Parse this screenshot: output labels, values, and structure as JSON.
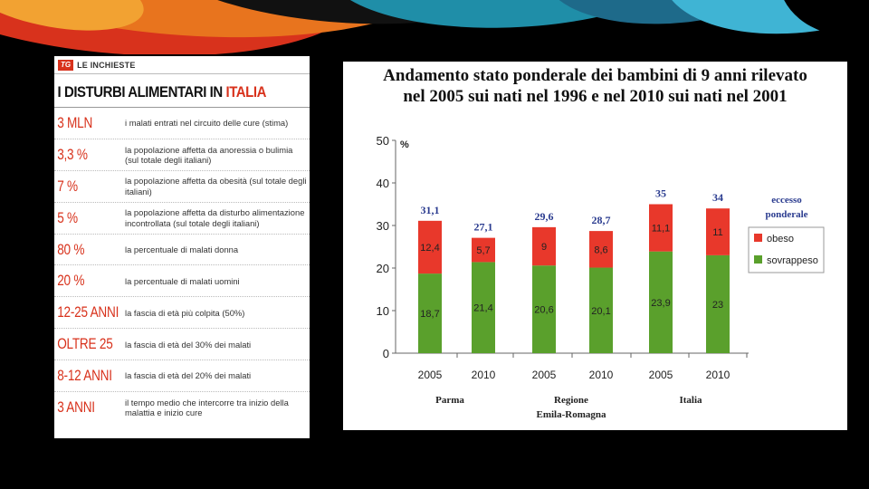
{
  "infographic": {
    "logo": "TG",
    "section": "LE INCHIESTE",
    "title_prefix": "I DISTURBI ALIMENTARI IN",
    "title_highlight": "ITALIA",
    "rows": [
      {
        "value": "3 MLN",
        "desc": "i malati entrati nel circuito delle cure (stima)"
      },
      {
        "value": "3,3 %",
        "desc": "la popolazione affetta da anoressia o bulimia (sul totale degli italiani)"
      },
      {
        "value": "7 %",
        "desc": "la popolazione affetta da obesità (sul totale degli italiani)"
      },
      {
        "value": "5 %",
        "desc": "la popolazione affetta da disturbo alimentazione incontrollata (sul totale degli italiani)"
      },
      {
        "value": "80 %",
        "desc": "la percentuale di malati donna"
      },
      {
        "value": "20 %",
        "desc": "la percentuale di malati uomini"
      },
      {
        "value": "12-25 ANNI",
        "desc": "la fascia di età più colpita (50%)"
      },
      {
        "value": "OLTRE 25",
        "desc": "la fascia di età del 30% dei malati"
      },
      {
        "value": "8-12 ANNI",
        "desc": "la fascia di età del 20% dei malati"
      },
      {
        "value": "3 ANNI",
        "desc": "il tempo medio che intercorre tra inizio della malattia e inizio cure"
      }
    ]
  },
  "chart_data": {
    "type": "bar",
    "stacked": true,
    "title_line1": "Andamento stato ponderale dei bambini di 9 anni rilevato",
    "title_line2": "nel 2005 sui nati nel 1996 e nel 2010 sui nati nel 2001",
    "ylabel": "%",
    "ylim": [
      0,
      50
    ],
    "yticks": [
      0,
      10,
      20,
      30,
      40,
      50
    ],
    "categories": [
      "2005",
      "2010",
      "2005",
      "2010",
      "2005",
      "2010"
    ],
    "groups": [
      {
        "label": "Parma",
        "indices": [
          0,
          1
        ]
      },
      {
        "label": "Regione\nEmila-Romagna",
        "indices": [
          2,
          3
        ]
      },
      {
        "label": "Italia",
        "indices": [
          4,
          5
        ]
      }
    ],
    "series": [
      {
        "name": "sovrappeso",
        "color": "#5aa02c",
        "values": [
          18.7,
          21.4,
          20.6,
          20.1,
          23.9,
          23
        ],
        "labels": [
          "18,7",
          "21,4",
          "20,6",
          "20,1",
          "23,9",
          "23"
        ]
      },
      {
        "name": "obeso",
        "color": "#e8382b",
        "values": [
          12.4,
          5.7,
          9,
          8.6,
          11.1,
          11
        ],
        "labels": [
          "12,4",
          "5,7",
          "9",
          "8,6",
          "11,1",
          "11"
        ]
      }
    ],
    "totals": [
      "31,1",
      "27,1",
      "29,6",
      "28,7",
      "35",
      "34"
    ],
    "total_values": [
      31.1,
      27.1,
      29.6,
      28.7,
      35,
      34
    ],
    "legend_title": "eccesso\nponderale",
    "legend_position": "right"
  }
}
